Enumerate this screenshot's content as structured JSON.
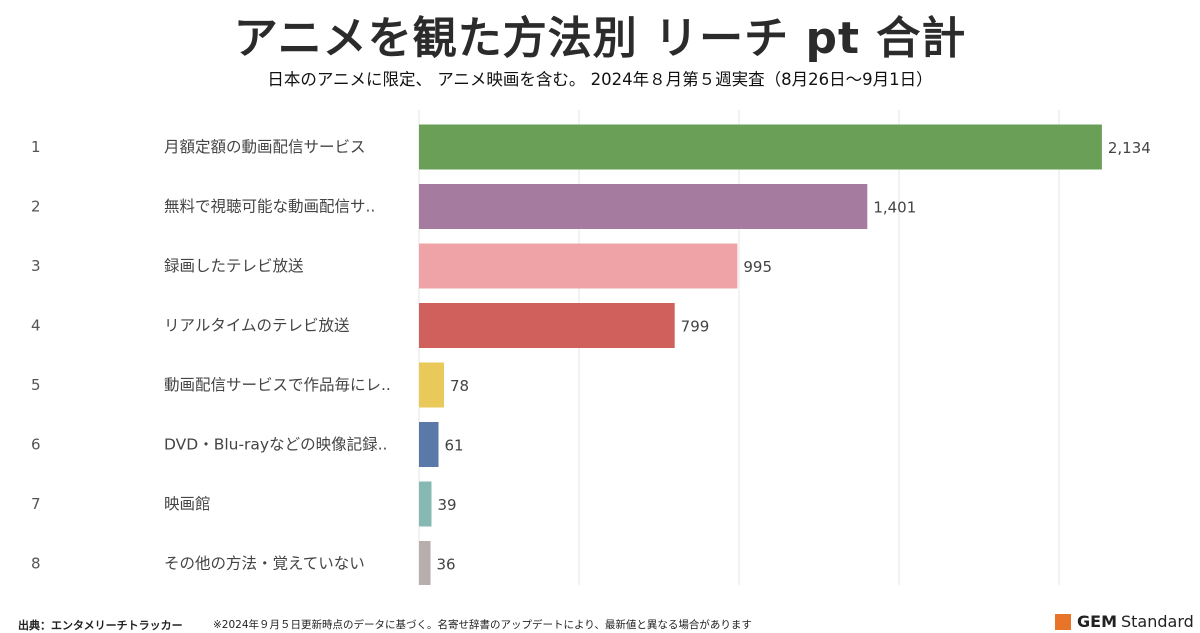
{
  "header": {
    "title": "アニメを観た方法別 リーチ pt 合計",
    "subtitle": "日本のアニメに限定、 アニメ映画を含む。 2024年８月第５週実査（8月26日～9月1日）"
  },
  "chart_data": {
    "type": "bar",
    "orientation": "horizontal",
    "ranks": [
      "1",
      "2",
      "3",
      "4",
      "5",
      "6",
      "7",
      "8"
    ],
    "categories": [
      "月額定額の動画配信サービス",
      "無料で視聴可能な動画配信サ..",
      "録画したテレビ放送",
      "リアルタイムのテレビ放送",
      "動画配信サービスで作品毎にレ..",
      "DVD・Blu-rayなどの映像記録..",
      "映画館",
      "その他の方法・覚えていない"
    ],
    "values": [
      2134,
      1401,
      995,
      799,
      78,
      61,
      39,
      36
    ],
    "value_labels": [
      "2,134",
      "1,401",
      "995",
      "799",
      "78",
      "61",
      "39",
      "36"
    ],
    "colors": [
      "#6a9f58",
      "#a57c9f",
      "#f0a3a7",
      "#d0605c",
      "#e8c95a",
      "#5a78a8",
      "#86b9b2",
      "#b8aeab"
    ],
    "xlim": [
      0,
      2200
    ],
    "grid": true
  },
  "footer": {
    "source": "出典：エンタメリーチトラッカー",
    "note": "※2024年９月５日更新時点のデータに基づく。名寄せ辞書のアップデートにより、最新値と異なる場合があります"
  },
  "brand": {
    "name_strong": "GEM",
    "name_rest": "Standard",
    "color": "#e8742a"
  }
}
